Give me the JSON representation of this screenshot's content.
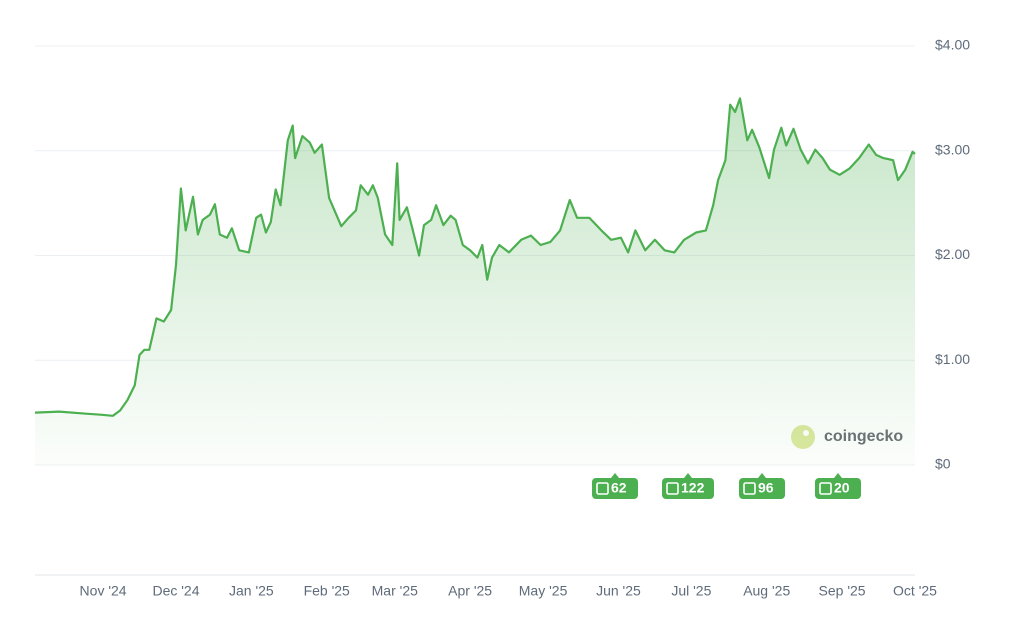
{
  "chart_data": {
    "type": "line",
    "watermark": "coingecko",
    "news_counts": [
      "62",
      "122",
      "96",
      "20"
    ],
    "x": [
      0,
      10,
      21,
      27,
      32,
      35,
      38,
      41,
      43,
      45,
      47,
      50,
      53,
      56,
      58,
      60,
      62,
      65,
      67,
      69,
      72,
      74,
      76,
      79,
      81,
      84,
      88,
      91,
      93,
      95,
      97,
      99,
      101,
      104,
      106,
      107,
      110,
      113,
      115,
      118,
      121,
      126,
      129,
      132,
      134,
      137,
      139,
      141,
      144,
      147,
      149,
      150,
      153,
      155,
      158,
      160,
      163,
      165,
      168,
      171,
      173,
      176,
      179,
      182,
      184,
      186,
      188,
      191,
      195,
      200,
      204,
      208,
      212,
      216,
      220,
      223,
      228,
      233,
      237,
      241,
      244,
      247,
      251,
      255,
      259,
      263,
      267,
      272,
      276,
      279,
      281,
      284,
      286,
      288,
      290,
      293,
      295,
      298,
      302,
      304,
      307,
      309,
      312,
      315,
      318,
      321,
      324,
      327,
      331,
      335,
      339,
      343,
      346,
      349,
      353,
      355,
      358,
      361,
      362
    ],
    "series": [
      {
        "color": "#4caf50",
        "values": [
          0.5,
          0.51,
          0.49,
          0.48,
          0.47,
          0.52,
          0.62,
          0.76,
          1.05,
          1.1,
          1.1,
          1.4,
          1.37,
          1.48,
          1.91,
          2.64,
          2.24,
          2.56,
          2.2,
          2.34,
          2.39,
          2.49,
          2.2,
          2.17,
          2.26,
          2.05,
          2.03,
          2.36,
          2.39,
          2.22,
          2.32,
          2.63,
          2.48,
          3.1,
          3.24,
          2.93,
          3.14,
          3.08,
          2.98,
          3.06,
          2.55,
          2.28,
          2.36,
          2.43,
          2.67,
          2.58,
          2.67,
          2.55,
          2.2,
          2.1,
          2.88,
          2.34,
          2.46,
          2.28,
          2.0,
          2.29,
          2.34,
          2.48,
          2.29,
          2.38,
          2.34,
          2.1,
          2.05,
          1.98,
          2.1,
          1.77,
          1.98,
          2.1,
          2.03,
          2.15,
          2.19,
          2.1,
          2.13,
          2.24,
          2.53,
          2.36,
          2.36,
          2.24,
          2.15,
          2.17,
          2.03,
          2.24,
          2.05,
          2.15,
          2.05,
          2.03,
          2.15,
          2.22,
          2.24,
          2.48,
          2.72,
          2.91,
          3.44,
          3.37,
          3.5,
          3.1,
          3.2,
          3.03,
          2.74,
          3.01,
          3.22,
          3.05,
          3.21,
          3.01,
          2.88,
          3.01,
          2.93,
          2.82,
          2.77,
          2.83,
          2.93,
          3.06,
          2.96,
          2.93,
          2.91,
          2.72,
          2.82,
          2.99,
          2.97
        ]
      }
    ],
    "xlim": [
      0,
      362
    ],
    "xticks": [
      {
        "value": 28,
        "label": "Nov '24"
      },
      {
        "value": 58,
        "label": "Dec '24"
      },
      {
        "value": 89,
        "label": "Jan '25"
      },
      {
        "value": 120,
        "label": "Feb '25"
      },
      {
        "value": 148,
        "label": "Mar '25"
      },
      {
        "value": 179,
        "label": "Apr '25"
      },
      {
        "value": 209,
        "label": "May '25"
      },
      {
        "value": 240,
        "label": "Jun '25"
      },
      {
        "value": 270,
        "label": "Jul '25"
      },
      {
        "value": 301,
        "label": "Aug '25"
      },
      {
        "value": 332,
        "label": "Sep '25"
      },
      {
        "value": 362,
        "label": "Oct '25"
      }
    ],
    "ylim": [
      0,
      4
    ],
    "yticks": [
      {
        "value": 0,
        "label": "$0"
      },
      {
        "value": 1,
        "label": "$1.00"
      },
      {
        "value": 2,
        "label": "$2.00"
      },
      {
        "value": 3,
        "label": "$3.00"
      },
      {
        "value": 4,
        "label": "$4.00"
      }
    ],
    "grid": true
  }
}
